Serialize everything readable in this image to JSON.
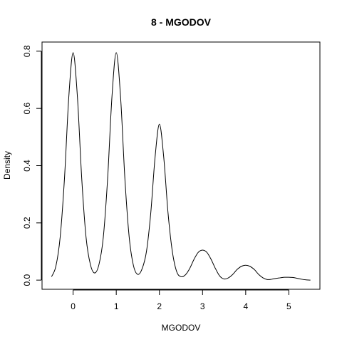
{
  "chart_data": {
    "type": "line",
    "title": "8 - MGODOV",
    "xlabel": "MGODOV",
    "ylabel": "Density",
    "xlim": [
      -0.72,
      5.72
    ],
    "ylim": [
      -0.032,
      0.832
    ],
    "x_ticks": [
      "0",
      "1",
      "2",
      "3",
      "4",
      "5"
    ],
    "y_ticks": [
      "0.0",
      "0.2",
      "0.4",
      "0.6",
      "0.8"
    ],
    "grid": false,
    "legend": "none",
    "line_color": "#000000",
    "series": [
      {
        "x": [
          -0.5,
          -0.4,
          -0.3,
          -0.2,
          -0.1,
          0.0,
          0.1,
          0.2,
          0.3,
          0.4,
          0.5,
          0.6,
          0.7,
          0.8,
          0.9,
          1.0,
          1.1,
          1.2,
          1.3,
          1.4,
          1.5,
          1.6,
          1.7,
          1.8,
          1.9,
          2.0,
          2.1,
          2.2,
          2.3,
          2.4,
          2.5,
          2.6,
          2.7,
          2.8,
          2.9,
          3.0,
          3.1,
          3.2,
          3.3,
          3.4,
          3.5,
          3.6,
          3.7,
          3.8,
          3.9,
          4.0,
          4.1,
          4.2,
          4.3,
          4.4,
          4.5,
          4.6,
          4.7,
          4.8,
          4.9,
          5.0,
          5.1,
          5.2,
          5.3,
          5.4,
          5.5
        ],
        "y": [
          0.012,
          0.048,
          0.15,
          0.355,
          0.64,
          0.795,
          0.64,
          0.355,
          0.15,
          0.055,
          0.025,
          0.055,
          0.15,
          0.355,
          0.64,
          0.795,
          0.64,
          0.355,
          0.15,
          0.05,
          0.02,
          0.04,
          0.1,
          0.235,
          0.43,
          0.545,
          0.43,
          0.235,
          0.1,
          0.03,
          0.012,
          0.018,
          0.04,
          0.072,
          0.097,
          0.105,
          0.097,
          0.072,
          0.04,
          0.014,
          0.004,
          0.008,
          0.02,
          0.037,
          0.048,
          0.052,
          0.048,
          0.037,
          0.02,
          0.008,
          0.002,
          0.003,
          0.006,
          0.008,
          0.01,
          0.01,
          0.009,
          0.006,
          0.003,
          0.001,
          0.0
        ]
      }
    ]
  }
}
